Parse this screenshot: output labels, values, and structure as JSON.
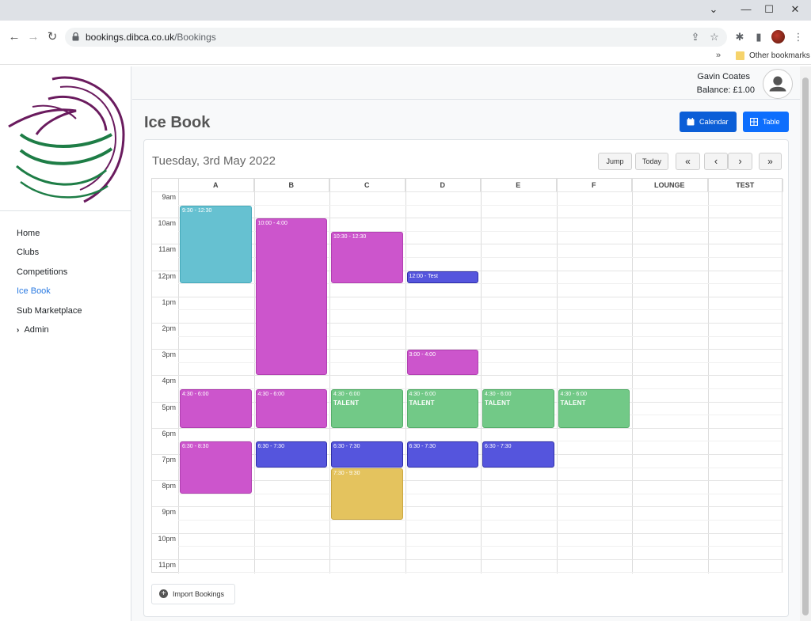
{
  "browser": {
    "url_host": "bookings.dibca.co.uk",
    "url_path": "/Bookings",
    "bookmarks_overflow": "»",
    "bookmarks_folder": "Other bookmarks"
  },
  "sidebar": {
    "items": [
      {
        "label": "Home"
      },
      {
        "label": "Clubs"
      },
      {
        "label": "Competitions"
      },
      {
        "label": "Ice Book"
      },
      {
        "label": "Sub Marketplace"
      },
      {
        "label": "Admin"
      }
    ],
    "active": "Ice Book"
  },
  "user": {
    "name": "Gavin Coates",
    "balance": "Balance: £1.00"
  },
  "header": {
    "title": "Ice Book",
    "calendar_label": "Calendar",
    "table_label": "Table"
  },
  "calendar": {
    "date": "Tuesday, 3rd May 2022",
    "jump": "Jump",
    "today": "Today",
    "prev_fast": "«",
    "prev": "‹",
    "next": "›",
    "next_fast": "»",
    "columns": [
      "A",
      "B",
      "C",
      "D",
      "E",
      "F",
      "LOUNGE",
      "TEST"
    ],
    "hours": [
      "9am",
      "10am",
      "11am",
      "12pm",
      "1pm",
      "2pm",
      "3pm",
      "4pm",
      "5pm",
      "6pm",
      "7pm",
      "8pm",
      "9pm",
      "10pm",
      "11pm"
    ],
    "events": [
      {
        "col": 0,
        "start": 9.5,
        "end": 12.5,
        "label": "9:30 - 12:30",
        "title": "",
        "color": "#66c1d1",
        "border": "#45a9ba"
      },
      {
        "col": 1,
        "start": 10,
        "end": 16,
        "label": "10:00 - 4:00",
        "title": "",
        "color": "#cc55cc",
        "border": "#b03fb0"
      },
      {
        "col": 2,
        "start": 10.5,
        "end": 12.5,
        "label": "10:30 - 12:30",
        "title": "",
        "color": "#cc55cc",
        "border": "#b03fb0"
      },
      {
        "col": 3,
        "start": 12,
        "end": 12.5,
        "label": "12:00 - Test",
        "title": "",
        "color": "#5555dd",
        "border": "#2e2ea8"
      },
      {
        "col": 3,
        "start": 15,
        "end": 16,
        "label": "3:00 - 4:00",
        "title": "",
        "color": "#cc55cc",
        "border": "#b03fb0"
      },
      {
        "col": 0,
        "start": 16.5,
        "end": 18,
        "label": "4:30 - 6:00",
        "title": "",
        "color": "#cc55cc",
        "border": "#b03fb0"
      },
      {
        "col": 1,
        "start": 16.5,
        "end": 18,
        "label": "4:30 - 6:00",
        "title": "",
        "color": "#cc55cc",
        "border": "#b03fb0"
      },
      {
        "col": 2,
        "start": 16.5,
        "end": 18,
        "label": "4:30 - 6:00",
        "title": "TALENT",
        "color": "#72c987",
        "border": "#55ad6a"
      },
      {
        "col": 3,
        "start": 16.5,
        "end": 18,
        "label": "4:30 - 6:00",
        "title": "TALENT",
        "color": "#72c987",
        "border": "#55ad6a"
      },
      {
        "col": 4,
        "start": 16.5,
        "end": 18,
        "label": "4:30 - 6:00",
        "title": "TALENT",
        "color": "#72c987",
        "border": "#55ad6a"
      },
      {
        "col": 5,
        "start": 16.5,
        "end": 18,
        "label": "4:30 - 6:00",
        "title": "TALENT",
        "color": "#72c987",
        "border": "#55ad6a"
      },
      {
        "col": 0,
        "start": 18.5,
        "end": 20.5,
        "label": "6:30 - 8:30",
        "title": "",
        "color": "#cc55cc",
        "border": "#b03fb0"
      },
      {
        "col": 1,
        "start": 18.5,
        "end": 19.5,
        "label": "6:30 - 7:30",
        "title": "",
        "color": "#5555dd",
        "border": "#2e2ea8"
      },
      {
        "col": 2,
        "start": 18.5,
        "end": 19.5,
        "label": "6:30 - 7:30",
        "title": "",
        "color": "#5555dd",
        "border": "#2e2ea8"
      },
      {
        "col": 3,
        "start": 18.5,
        "end": 19.5,
        "label": "6:30 - 7:30",
        "title": "",
        "color": "#5555dd",
        "border": "#2e2ea8"
      },
      {
        "col": 4,
        "start": 18.5,
        "end": 19.5,
        "label": "6:30 - 7:30",
        "title": "",
        "color": "#5555dd",
        "border": "#2e2ea8"
      },
      {
        "col": 2,
        "start": 19.5,
        "end": 21.5,
        "label": "7:30 - 9:30",
        "title": "",
        "color": "#e4c35e",
        "border": "#c9a641"
      }
    ]
  },
  "footer": {
    "import_label": "Import Bookings"
  },
  "colors": {
    "primary": "#0d6efd",
    "calendar_btn": "#0b5ed7",
    "table_btn": "#0d6efd",
    "active_nav": "#2a7ae2"
  }
}
